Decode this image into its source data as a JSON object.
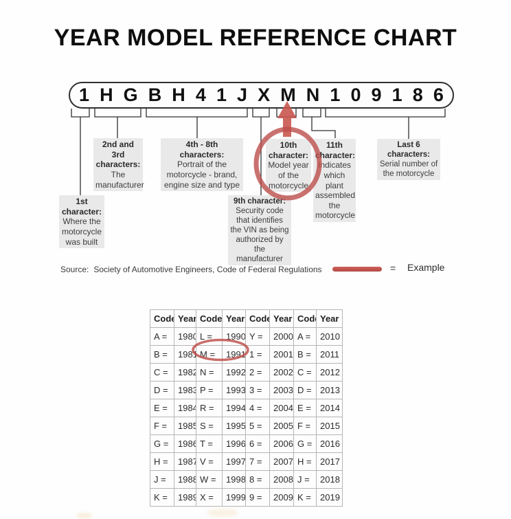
{
  "title": "YEAR MODEL REFERENCE CHART",
  "vin": {
    "characters": [
      "1",
      "H",
      "G",
      "B",
      "H",
      "4",
      "1",
      "J",
      "X",
      "M",
      "N",
      "1",
      "0",
      "9",
      "1",
      "8",
      "6"
    ]
  },
  "callouts": {
    "first": {
      "heading": "1st character:",
      "body": "Where the motorcycle was built"
    },
    "second_third": {
      "heading": "2nd and 3rd characters:",
      "body": "The manufacturer"
    },
    "fourth_eighth": {
      "heading": "4th - 8th characters:",
      "body": "Portrait of the motorcycle - brand, engine size and type"
    },
    "ninth": {
      "heading": "9th character:",
      "body": "Security code that identifies the VIN as being authorized by the manufacturer"
    },
    "tenth": {
      "heading": "10th character:",
      "body": "Model year of the motorcycle"
    },
    "eleventh": {
      "heading": "11th character:",
      "body": "Indicates which plant assembled the motorcycle"
    },
    "last_six": {
      "heading": "Last 6 characters:",
      "body": "Serial number of the motorcycle"
    }
  },
  "source": {
    "label": "Source:",
    "text": "Society of Automotive Engineers, Code of Federal Regulations"
  },
  "legend": {
    "equals": "=",
    "label": "Example"
  },
  "colors": {
    "accent_red": "#c0524e",
    "box_bg": "#e9e9e9",
    "table_border": "#b5b5b5"
  },
  "table": {
    "headers": [
      "Code",
      "Year",
      "Code",
      "Year",
      "Code",
      "Year",
      "Code",
      "Year"
    ],
    "rows": [
      [
        "A =",
        "1980",
        "L =",
        "1990",
        "Y =",
        "2000",
        "A =",
        "2010"
      ],
      [
        "B =",
        "1981",
        "M =",
        "1991",
        "1 =",
        "2001",
        "B =",
        "2011"
      ],
      [
        "C =",
        "1982",
        "N =",
        "1992",
        "2 =",
        "2002",
        "C =",
        "2012"
      ],
      [
        "D =",
        "1983",
        "P =",
        "1993",
        "3 =",
        "2003",
        "D =",
        "2013"
      ],
      [
        "E =",
        "1984",
        "R =",
        "1994",
        "4 =",
        "2004",
        "E =",
        "2014"
      ],
      [
        "F =",
        "1985",
        "S =",
        "1995",
        "5 =",
        "2005",
        "F =",
        "2015"
      ],
      [
        "G =",
        "1986",
        "T =",
        "1996",
        "6 =",
        "2006",
        "G =",
        "2016"
      ],
      [
        "H =",
        "1987",
        "V =",
        "1997",
        "7 =",
        "2007",
        "H =",
        "2017"
      ],
      [
        "J =",
        "1988",
        "W =",
        "1998",
        "8 =",
        "2008",
        "J =",
        "2018"
      ],
      [
        "K =",
        "1989",
        "X =",
        "1999",
        "9 =",
        "2009",
        "K =",
        "2019"
      ]
    ],
    "highlighted_mapping": "M = 1991"
  }
}
